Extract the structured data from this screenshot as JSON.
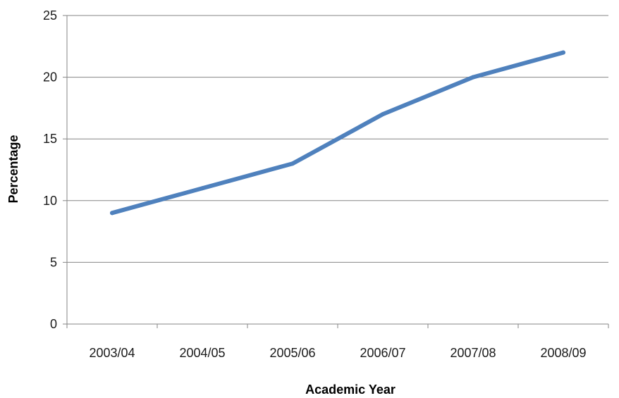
{
  "chart_data": {
    "type": "line",
    "title": "",
    "xlabel": "Academic Year",
    "ylabel": "Percentage",
    "categories": [
      "2003/04",
      "2004/05",
      "2005/06",
      "2006/07",
      "2007/08",
      "2008/09"
    ],
    "series": [
      {
        "values": [
          9,
          11,
          13,
          17,
          20,
          22
        ]
      }
    ],
    "ylim": [
      0,
      25
    ],
    "yticks": [
      0,
      5,
      10,
      15,
      20,
      25
    ],
    "grid": true,
    "legend": "none",
    "colors": {
      "line": "#4F81BD",
      "grid": "#868686",
      "axis": "#868686"
    }
  }
}
